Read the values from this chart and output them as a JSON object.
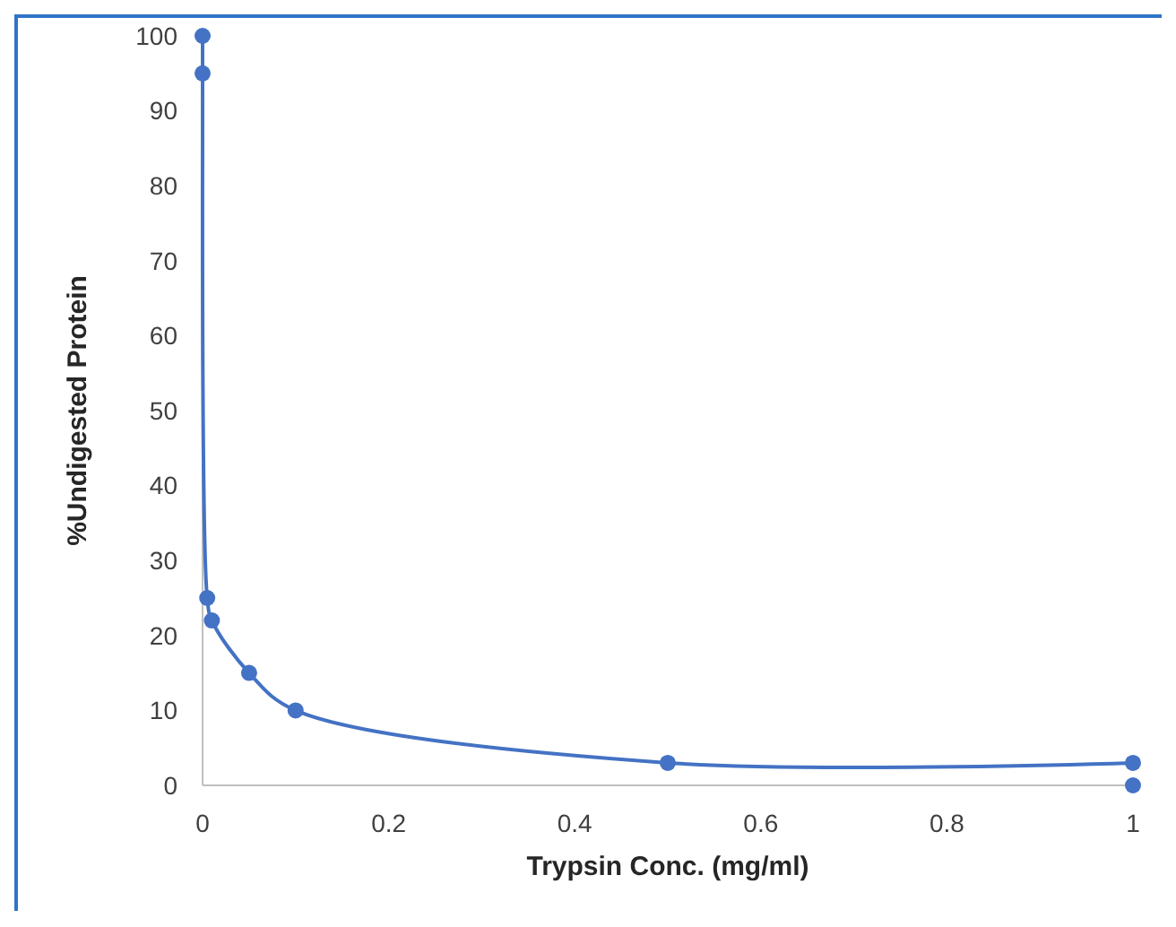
{
  "chart_data": {
    "type": "line",
    "xlabel": "Trypsin Conc. (mg/ml)",
    "ylabel": "%Undigested Protein",
    "xlim": [
      0,
      1
    ],
    "xticks": [
      0,
      0.2,
      0.4,
      0.6,
      0.8,
      1
    ],
    "ylim": [
      0,
      100
    ],
    "yticks": [
      0,
      10,
      20,
      30,
      40,
      50,
      60,
      70,
      80,
      90,
      100
    ],
    "grid": false,
    "marker": "circle",
    "line_style": "solid",
    "series": [
      {
        "color": "#4472c4",
        "x": [
          0,
          0,
          0.005,
          0.01,
          0.05,
          0.1,
          0.5,
          1
        ],
        "values": [
          100,
          95,
          25,
          22,
          15,
          10,
          3,
          3
        ]
      },
      {
        "type": "scatter",
        "color": "#4472c4",
        "x": [
          1
        ],
        "values": [
          0
        ]
      }
    ]
  }
}
